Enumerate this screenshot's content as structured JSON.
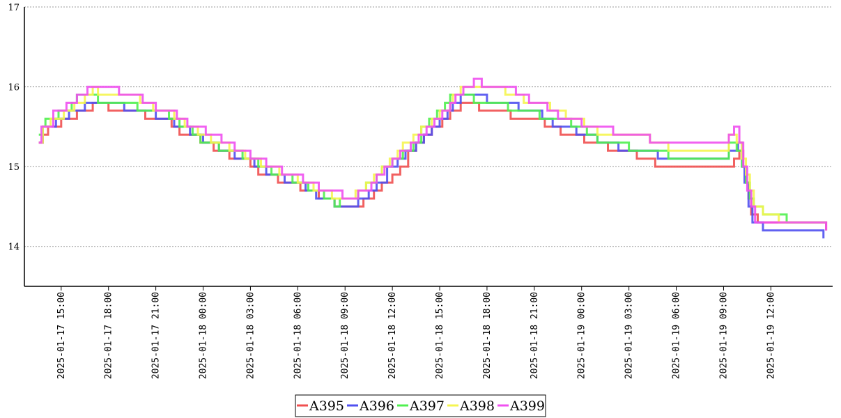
{
  "chart_data": {
    "type": "line",
    "step": true,
    "ylim": [
      13.5,
      17
    ],
    "yticks": [
      14,
      15,
      16,
      17
    ],
    "grid": "horizontal-dashed",
    "legend_position": "bottom-center",
    "xticks": [
      "2025-01-17 15:00",
      "2025-01-17 18:00",
      "2025-01-17 21:00",
      "2025-01-18 00:00",
      "2025-01-18 03:00",
      "2025-01-18 06:00",
      "2025-01-18 09:00",
      "2025-01-18 12:00",
      "2025-01-18 15:00",
      "2025-01-18 18:00",
      "2025-01-18 21:00",
      "2025-01-19 00:00",
      "2025-01-19 03:00",
      "2025-01-19 06:00",
      "2025-01-19 09:00",
      "2025-01-19 12:00"
    ],
    "xlim": [
      "2025-01-17 12:40",
      "2025-01-19 15:55"
    ],
    "series": [
      {
        "name": "A395",
        "color": "#f05050",
        "points": [
          [
            "2025-01-17 13:35",
            15.3
          ],
          [
            "2025-01-17 13:50",
            15.4
          ],
          [
            "2025-01-17 14:10",
            15.5
          ],
          [
            "2025-01-17 15:00",
            15.6
          ],
          [
            "2025-01-17 16:00",
            15.7
          ],
          [
            "2025-01-17 17:00",
            15.8
          ],
          [
            "2025-01-17 18:00",
            15.7
          ],
          [
            "2025-01-17 20:20",
            15.6
          ],
          [
            "2025-01-17 22:00",
            15.5
          ],
          [
            "2025-01-17 22:30",
            15.4
          ],
          [
            "2025-01-17 23:50",
            15.3
          ],
          [
            "2025-01-18 00:40",
            15.2
          ],
          [
            "2025-01-18 01:40",
            15.1
          ],
          [
            "2025-01-18 03:00",
            15.0
          ],
          [
            "2025-01-18 03:30",
            14.9
          ],
          [
            "2025-01-18 04:45",
            14.8
          ],
          [
            "2025-01-18 06:10",
            14.7
          ],
          [
            "2025-01-18 07:20",
            14.6
          ],
          [
            "2025-01-18 08:20",
            14.5
          ],
          [
            "2025-01-18 10:10",
            14.6
          ],
          [
            "2025-01-18 10:50",
            14.7
          ],
          [
            "2025-01-18 11:20",
            14.8
          ],
          [
            "2025-01-18 12:00",
            14.9
          ],
          [
            "2025-01-18 12:30",
            15.0
          ],
          [
            "2025-01-18 13:00",
            15.2
          ],
          [
            "2025-01-18 13:30",
            15.3
          ],
          [
            "2025-01-18 14:00",
            15.4
          ],
          [
            "2025-01-18 14:30",
            15.5
          ],
          [
            "2025-01-18 15:10",
            15.6
          ],
          [
            "2025-01-18 15:40",
            15.7
          ],
          [
            "2025-01-18 16:20",
            15.8
          ],
          [
            "2025-01-18 17:30",
            15.7
          ],
          [
            "2025-01-18 19:30",
            15.6
          ],
          [
            "2025-01-18 21:40",
            15.5
          ],
          [
            "2025-01-18 22:40",
            15.4
          ],
          [
            "2025-01-19 00:10",
            15.3
          ],
          [
            "2025-01-19 01:40",
            15.2
          ],
          [
            "2025-01-19 03:30",
            15.1
          ],
          [
            "2025-01-19 04:40",
            15.0
          ],
          [
            "2025-01-19 09:40",
            15.1
          ],
          [
            "2025-01-19 10:00",
            15.2
          ],
          [
            "2025-01-19 10:15",
            15.0
          ],
          [
            "2025-01-19 10:25",
            14.8
          ],
          [
            "2025-01-19 10:35",
            14.6
          ],
          [
            "2025-01-19 10:45",
            14.4
          ],
          [
            "2025-01-19 11:10",
            14.3
          ],
          [
            "2025-01-19 15:30",
            14.2
          ]
        ]
      },
      {
        "name": "A396",
        "color": "#5050f0",
        "points": [
          [
            "2025-01-17 13:35",
            15.3
          ],
          [
            "2025-01-17 13:50",
            15.5
          ],
          [
            "2025-01-17 14:40",
            15.6
          ],
          [
            "2025-01-17 15:30",
            15.7
          ],
          [
            "2025-01-17 16:30",
            15.8
          ],
          [
            "2025-01-17 19:00",
            15.7
          ],
          [
            "2025-01-17 21:00",
            15.6
          ],
          [
            "2025-01-17 22:10",
            15.5
          ],
          [
            "2025-01-17 23:10",
            15.4
          ],
          [
            "2025-01-18 00:00",
            15.3
          ],
          [
            "2025-01-18 01:00",
            15.2
          ],
          [
            "2025-01-18 02:00",
            15.1
          ],
          [
            "2025-01-18 03:15",
            15.0
          ],
          [
            "2025-01-18 04:00",
            14.9
          ],
          [
            "2025-01-18 05:10",
            14.8
          ],
          [
            "2025-01-18 06:30",
            14.7
          ],
          [
            "2025-01-18 07:10",
            14.6
          ],
          [
            "2025-01-18 08:20",
            14.5
          ],
          [
            "2025-01-18 09:50",
            14.6
          ],
          [
            "2025-01-18 10:30",
            14.7
          ],
          [
            "2025-01-18 11:00",
            14.8
          ],
          [
            "2025-01-18 11:40",
            15.0
          ],
          [
            "2025-01-18 12:20",
            15.1
          ],
          [
            "2025-01-18 12:50",
            15.2
          ],
          [
            "2025-01-18 13:30",
            15.3
          ],
          [
            "2025-01-18 14:00",
            15.4
          ],
          [
            "2025-01-18 14:30",
            15.5
          ],
          [
            "2025-01-18 15:00",
            15.6
          ],
          [
            "2025-01-18 15:30",
            15.7
          ],
          [
            "2025-01-18 15:50",
            15.8
          ],
          [
            "2025-01-18 16:20",
            15.9
          ],
          [
            "2025-01-18 18:00",
            15.8
          ],
          [
            "2025-01-18 20:00",
            15.7
          ],
          [
            "2025-01-18 21:30",
            15.6
          ],
          [
            "2025-01-18 22:10",
            15.5
          ],
          [
            "2025-01-18 23:40",
            15.4
          ],
          [
            "2025-01-19 01:00",
            15.3
          ],
          [
            "2025-01-19 02:20",
            15.2
          ],
          [
            "2025-01-19 04:50",
            15.1
          ],
          [
            "2025-01-19 09:20",
            15.2
          ],
          [
            "2025-01-19 09:55",
            15.3
          ],
          [
            "2025-01-19 10:10",
            15.0
          ],
          [
            "2025-01-19 10:20",
            14.8
          ],
          [
            "2025-01-19 10:35",
            14.5
          ],
          [
            "2025-01-19 10:50",
            14.3
          ],
          [
            "2025-01-19 11:30",
            14.2
          ],
          [
            "2025-01-19 15:20",
            14.1
          ]
        ]
      },
      {
        "name": "A397",
        "color": "#50f050",
        "points": [
          [
            "2025-01-17 13:35",
            15.4
          ],
          [
            "2025-01-17 13:50",
            15.5
          ],
          [
            "2025-01-17 14:00",
            15.6
          ],
          [
            "2025-01-17 14:50",
            15.7
          ],
          [
            "2025-01-17 15:40",
            15.8
          ],
          [
            "2025-01-17 16:00",
            15.9
          ],
          [
            "2025-01-17 17:20",
            15.8
          ],
          [
            "2025-01-17 19:50",
            15.7
          ],
          [
            "2025-01-17 21:50",
            15.6
          ],
          [
            "2025-01-17 22:30",
            15.5
          ],
          [
            "2025-01-17 23:20",
            15.4
          ],
          [
            "2025-01-17 23:50",
            15.3
          ],
          [
            "2025-01-18 01:00",
            15.2
          ],
          [
            "2025-01-18 02:30",
            15.1
          ],
          [
            "2025-01-18 03:30",
            15.0
          ],
          [
            "2025-01-18 04:20",
            14.9
          ],
          [
            "2025-01-18 05:40",
            14.8
          ],
          [
            "2025-01-18 06:40",
            14.7
          ],
          [
            "2025-01-18 07:40",
            14.6
          ],
          [
            "2025-01-18 08:20",
            14.5
          ],
          [
            "2025-01-18 08:40",
            14.6
          ],
          [
            "2025-01-18 09:50",
            14.7
          ],
          [
            "2025-01-18 10:20",
            14.8
          ],
          [
            "2025-01-18 11:00",
            14.9
          ],
          [
            "2025-01-18 11:20",
            15.0
          ],
          [
            "2025-01-18 12:00",
            15.1
          ],
          [
            "2025-01-18 12:40",
            15.2
          ],
          [
            "2025-01-18 13:20",
            15.3
          ],
          [
            "2025-01-18 13:50",
            15.5
          ],
          [
            "2025-01-18 14:20",
            15.6
          ],
          [
            "2025-01-18 14:50",
            15.7
          ],
          [
            "2025-01-18 15:20",
            15.8
          ],
          [
            "2025-01-18 15:40",
            15.9
          ],
          [
            "2025-01-18 17:10",
            15.8
          ],
          [
            "2025-01-18 19:20",
            15.7
          ],
          [
            "2025-01-18 21:20",
            15.6
          ],
          [
            "2025-01-18 23:20",
            15.5
          ],
          [
            "2025-01-19 00:20",
            15.4
          ],
          [
            "2025-01-19 01:00",
            15.3
          ],
          [
            "2025-01-19 03:00",
            15.2
          ],
          [
            "2025-01-19 05:30",
            15.1
          ],
          [
            "2025-01-19 09:20",
            15.3
          ],
          [
            "2025-01-19 09:50",
            15.2
          ],
          [
            "2025-01-19 10:10",
            15.0
          ],
          [
            "2025-01-19 10:25",
            14.8
          ],
          [
            "2025-01-19 10:40",
            14.6
          ],
          [
            "2025-01-19 10:55",
            14.5
          ],
          [
            "2025-01-19 11:30",
            14.4
          ],
          [
            "2025-01-19 13:00",
            14.3
          ],
          [
            "2025-01-19 15:30",
            14.3
          ]
        ]
      },
      {
        "name": "A398",
        "color": "#f5f550",
        "points": [
          [
            "2025-01-17 13:35",
            15.3
          ],
          [
            "2025-01-17 13:50",
            15.5
          ],
          [
            "2025-01-17 14:20",
            15.6
          ],
          [
            "2025-01-17 15:10",
            15.7
          ],
          [
            "2025-01-17 15:50",
            15.8
          ],
          [
            "2025-01-17 16:30",
            15.9
          ],
          [
            "2025-01-17 17:00",
            16.0
          ],
          [
            "2025-01-17 17:20",
            15.9
          ],
          [
            "2025-01-17 20:00",
            15.8
          ],
          [
            "2025-01-17 20:50",
            15.7
          ],
          [
            "2025-01-17 22:10",
            15.6
          ],
          [
            "2025-01-17 22:50",
            15.5
          ],
          [
            "2025-01-17 23:40",
            15.4
          ],
          [
            "2025-01-18 00:30",
            15.3
          ],
          [
            "2025-01-18 01:40",
            15.2
          ],
          [
            "2025-01-18 02:40",
            15.1
          ],
          [
            "2025-01-18 03:40",
            15.0
          ],
          [
            "2025-01-18 04:50",
            14.9
          ],
          [
            "2025-01-18 06:00",
            14.8
          ],
          [
            "2025-01-18 07:00",
            14.7
          ],
          [
            "2025-01-18 08:10",
            14.6
          ],
          [
            "2025-01-18 09:40",
            14.7
          ],
          [
            "2025-01-18 10:20",
            14.8
          ],
          [
            "2025-01-18 10:50",
            14.9
          ],
          [
            "2025-01-18 11:20",
            15.0
          ],
          [
            "2025-01-18 11:50",
            15.1
          ],
          [
            "2025-01-18 12:20",
            15.2
          ],
          [
            "2025-01-18 12:40",
            15.3
          ],
          [
            "2025-01-18 13:20",
            15.4
          ],
          [
            "2025-01-18 13:50",
            15.5
          ],
          [
            "2025-01-18 14:30",
            15.6
          ],
          [
            "2025-01-18 15:00",
            15.7
          ],
          [
            "2025-01-18 15:40",
            15.8
          ],
          [
            "2025-01-18 15:50",
            15.9
          ],
          [
            "2025-01-18 16:20",
            16.0
          ],
          [
            "2025-01-18 19:10",
            15.9
          ],
          [
            "2025-01-18 20:20",
            15.8
          ],
          [
            "2025-01-18 22:00",
            15.7
          ],
          [
            "2025-01-18 23:00",
            15.6
          ],
          [
            "2025-01-19 00:10",
            15.5
          ],
          [
            "2025-01-19 01:00",
            15.4
          ],
          [
            "2025-01-19 04:20",
            15.3
          ],
          [
            "2025-01-19 05:30",
            15.2
          ],
          [
            "2025-01-19 09:20",
            15.4
          ],
          [
            "2025-01-19 09:50",
            15.3
          ],
          [
            "2025-01-19 10:10",
            15.1
          ],
          [
            "2025-01-19 10:25",
            14.9
          ],
          [
            "2025-01-19 10:40",
            14.7
          ],
          [
            "2025-01-19 10:55",
            14.5
          ],
          [
            "2025-01-19 11:30",
            14.4
          ],
          [
            "2025-01-19 12:30",
            14.3
          ],
          [
            "2025-01-19 15:30",
            14.3
          ]
        ]
      },
      {
        "name": "A399",
        "color": "#f050f0",
        "points": [
          [
            "2025-01-17 13:35",
            15.3
          ],
          [
            "2025-01-17 13:45",
            15.5
          ],
          [
            "2025-01-17 14:30",
            15.7
          ],
          [
            "2025-01-17 15:20",
            15.8
          ],
          [
            "2025-01-17 16:00",
            15.9
          ],
          [
            "2025-01-17 16:40",
            16.0
          ],
          [
            "2025-01-17 18:40",
            15.9
          ],
          [
            "2025-01-17 20:10",
            15.8
          ],
          [
            "2025-01-17 21:00",
            15.7
          ],
          [
            "2025-01-17 22:20",
            15.6
          ],
          [
            "2025-01-17 23:00",
            15.5
          ],
          [
            "2025-01-18 00:10",
            15.4
          ],
          [
            "2025-01-18 01:10",
            15.3
          ],
          [
            "2025-01-18 02:00",
            15.2
          ],
          [
            "2025-01-18 03:00",
            15.1
          ],
          [
            "2025-01-18 04:00",
            15.0
          ],
          [
            "2025-01-18 05:00",
            14.9
          ],
          [
            "2025-01-18 06:20",
            14.8
          ],
          [
            "2025-01-18 07:20",
            14.7
          ],
          [
            "2025-01-18 08:50",
            14.6
          ],
          [
            "2025-01-18 09:50",
            14.7
          ],
          [
            "2025-01-18 10:40",
            14.8
          ],
          [
            "2025-01-18 11:00",
            14.9
          ],
          [
            "2025-01-18 11:30",
            15.0
          ],
          [
            "2025-01-18 12:00",
            15.1
          ],
          [
            "2025-01-18 12:30",
            15.2
          ],
          [
            "2025-01-18 13:10",
            15.3
          ],
          [
            "2025-01-18 13:40",
            15.4
          ],
          [
            "2025-01-18 14:10",
            15.5
          ],
          [
            "2025-01-18 14:40",
            15.6
          ],
          [
            "2025-01-18 15:10",
            15.7
          ],
          [
            "2025-01-18 15:40",
            15.8
          ],
          [
            "2025-01-18 16:00",
            15.9
          ],
          [
            "2025-01-18 16:30",
            16.0
          ],
          [
            "2025-01-18 17:10",
            16.1
          ],
          [
            "2025-01-18 17:40",
            16.0
          ],
          [
            "2025-01-18 19:50",
            15.9
          ],
          [
            "2025-01-18 20:40",
            15.8
          ],
          [
            "2025-01-18 21:50",
            15.7
          ],
          [
            "2025-01-18 22:30",
            15.6
          ],
          [
            "2025-01-19 00:00",
            15.5
          ],
          [
            "2025-01-19 02:00",
            15.4
          ],
          [
            "2025-01-19 04:20",
            15.3
          ],
          [
            "2025-01-19 09:20",
            15.4
          ],
          [
            "2025-01-19 09:40",
            15.5
          ],
          [
            "2025-01-19 10:00",
            15.3
          ],
          [
            "2025-01-19 10:15",
            15.0
          ],
          [
            "2025-01-19 10:30",
            14.7
          ],
          [
            "2025-01-19 10:45",
            14.5
          ],
          [
            "2025-01-19 11:00",
            14.3
          ],
          [
            "2025-01-19 15:30",
            14.2
          ]
        ]
      }
    ]
  }
}
